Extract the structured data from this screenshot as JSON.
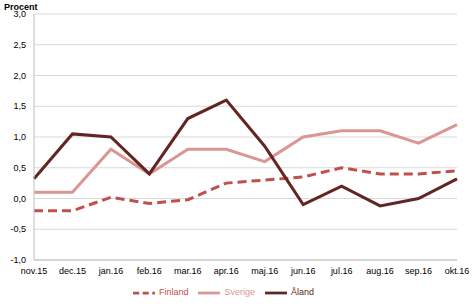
{
  "chart_data": {
    "type": "line",
    "y_label": "Procent",
    "categories": [
      "nov.15",
      "dec.15",
      "jan.16",
      "feb.16",
      "mar.16",
      "apr.16",
      "maj.16",
      "jun.16",
      "jul.16",
      "aug.16",
      "sep.16",
      "okt.16"
    ],
    "series": [
      {
        "name": "Sverige",
        "color": "#d99694",
        "line_style": "solid",
        "values": [
          0.1,
          0.1,
          0.8,
          0.4,
          0.8,
          0.8,
          0.6,
          1.0,
          1.1,
          1.1,
          0.9,
          1.2
        ]
      },
      {
        "name": "Finland",
        "color": "#c0504d",
        "line_style": "dashed",
        "values": [
          -0.2,
          -0.2,
          0.02,
          -0.08,
          -0.02,
          0.25,
          0.3,
          0.35,
          0.5,
          0.4,
          0.4,
          0.45
        ]
      },
      {
        "name": "Åland",
        "color": "#632523",
        "line_style": "solid",
        "values": [
          0.32,
          1.05,
          1.0,
          0.4,
          1.3,
          1.6,
          0.85,
          -0.1,
          0.2,
          -0.12,
          0.0,
          0.32
        ]
      }
    ],
    "ylim": [
      -1.0,
      3.0
    ],
    "yticks": [
      {
        "value": -1.0,
        "label": "-1,0"
      },
      {
        "value": -0.5,
        "label": "-0,5"
      },
      {
        "value": 0,
        "label": "0,0"
      },
      {
        "value": 0.5,
        "label": "0,5"
      },
      {
        "value": 1.0,
        "label": "1,0"
      },
      {
        "value": 1.5,
        "label": "1,5"
      },
      {
        "value": 2.0,
        "label": "2,0"
      },
      {
        "value": 2.5,
        "label": "2,5"
      },
      {
        "value": 3.0,
        "label": "3,0"
      }
    ],
    "grid": true,
    "legend": "bottom"
  }
}
